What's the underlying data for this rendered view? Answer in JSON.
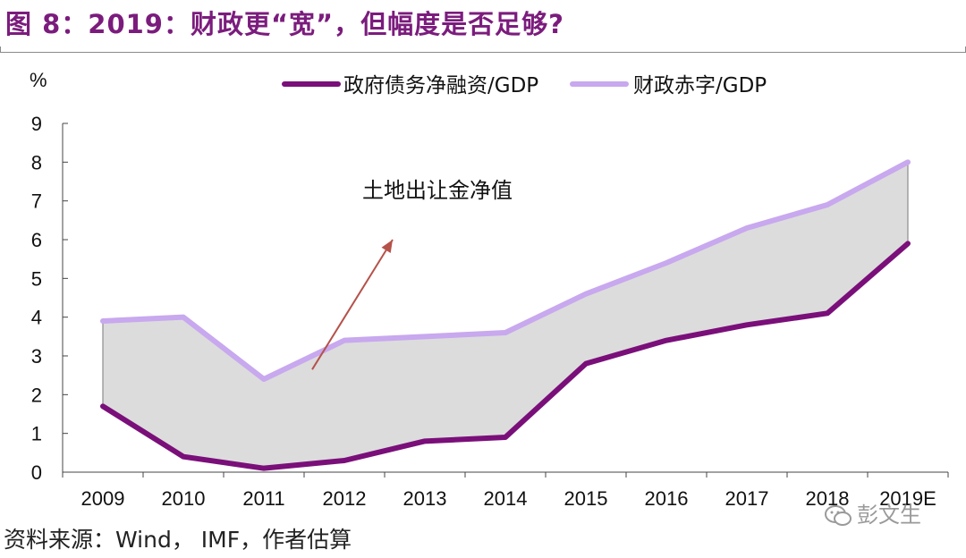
{
  "header": {
    "title": "图 8：2019：财政更“宽”，但幅度是否足够?"
  },
  "footer": {
    "source": "资料来源：Wind， IMF，作者估算"
  },
  "watermark": {
    "text": "彭文生",
    "icon": "wechat-icon"
  },
  "colors": {
    "title": "#7B1C7D",
    "debt_series": "#7A0F7A",
    "deficit_series": "#C8A8EE",
    "fill": "#DCDCDC",
    "arrow": "#B5524A"
  },
  "chart_data": {
    "type": "line",
    "title": "",
    "xlabel": "",
    "ylabel": "%",
    "ylim": [
      0,
      9
    ],
    "yticks": [
      0,
      1,
      2,
      3,
      4,
      5,
      6,
      7,
      8,
      9
    ],
    "categories": [
      "2009",
      "2010",
      "2011",
      "2012",
      "2013",
      "2014",
      "2015",
      "2016",
      "2017",
      "2018",
      "2019E"
    ],
    "series": [
      {
        "name": "政府债务净融资/GDP",
        "values": [
          1.7,
          0.4,
          0.1,
          0.3,
          0.8,
          0.9,
          2.8,
          3.4,
          3.8,
          4.1,
          5.9
        ]
      },
      {
        "name": "财政赤字/GDP",
        "values": [
          3.9,
          4.0,
          2.4,
          3.4,
          3.5,
          3.6,
          4.6,
          5.4,
          6.3,
          6.9,
          8.0
        ]
      }
    ],
    "annotation": {
      "text": "土地出让金净值",
      "arrow_from": {
        "x": 3.1,
        "y": 2.65
      },
      "arrow_to": {
        "x": 4.1,
        "y": 6.0
      }
    },
    "legend": "top",
    "grid": false
  }
}
